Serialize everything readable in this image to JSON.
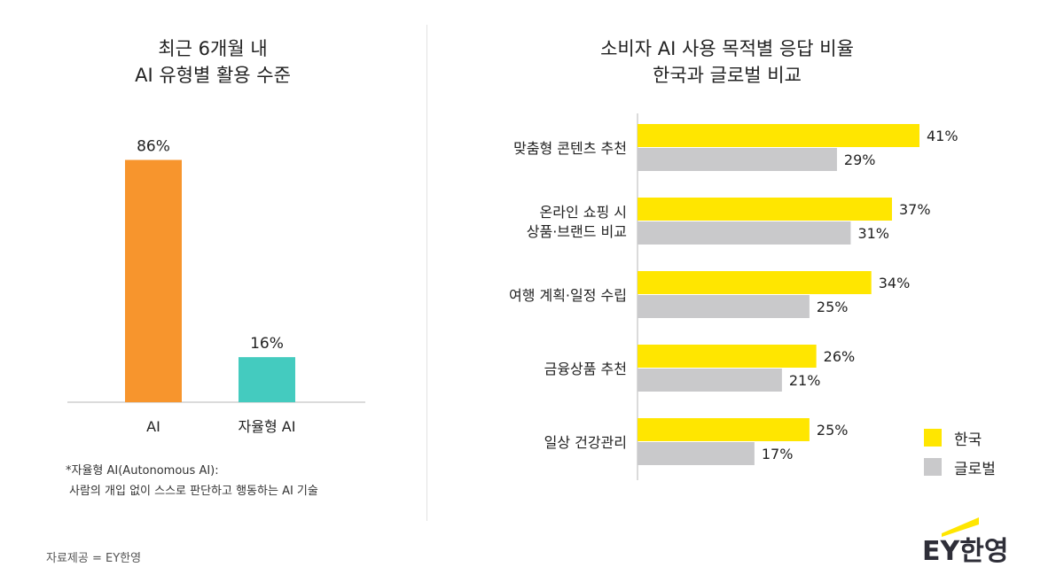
{
  "chart_data": [
    {
      "type": "bar",
      "title": [
        "최근 6개월 내",
        "AI 유형별 활용 수준"
      ],
      "categories": [
        "AI",
        "자율형 AI"
      ],
      "values": [
        86,
        16
      ],
      "value_labels": [
        "86%",
        "16%"
      ],
      "ylim": [
        0,
        100
      ],
      "colors": [
        "#f7952d",
        "#44cbbf"
      ],
      "grid": false,
      "note": {
        "title": "*자율형 AI(Autonomous AI):",
        "desc": "사람의 개입 없이 스스로 판단하고 행동하는 AI 기술"
      }
    },
    {
      "type": "bar",
      "orientation": "horizontal",
      "title": [
        "소비자 AI 사용 목적별 응답 비율",
        "한국과 글로벌 비교"
      ],
      "categories": [
        [
          "맞춤형 콘텐츠 추천"
        ],
        [
          "온라인 쇼핑 시",
          "상품·브랜드 비교"
        ],
        [
          "여행 계획·일정 수립"
        ],
        [
          "금융상품 추천"
        ],
        [
          "일상 건강관리"
        ]
      ],
      "series": [
        {
          "name": "한국",
          "values": [
            41,
            37,
            34,
            26,
            25
          ],
          "labels": [
            "41%",
            "37%",
            "34%",
            "26%",
            "25%"
          ],
          "color": "#ffe600"
        },
        {
          "name": "글로벌",
          "values": [
            29,
            31,
            25,
            21,
            17
          ],
          "labels": [
            "29%",
            "31%",
            "25%",
            "21%",
            "17%"
          ],
          "color": "#c9c9cb"
        }
      ],
      "xlim": [
        0,
        45
      ],
      "grid": false,
      "legend_position": "bottom-right"
    }
  ],
  "footer": {
    "source": "자료제공 = EY한영"
  },
  "logo": {
    "text": "EY한영",
    "accent": "#ffe600"
  }
}
